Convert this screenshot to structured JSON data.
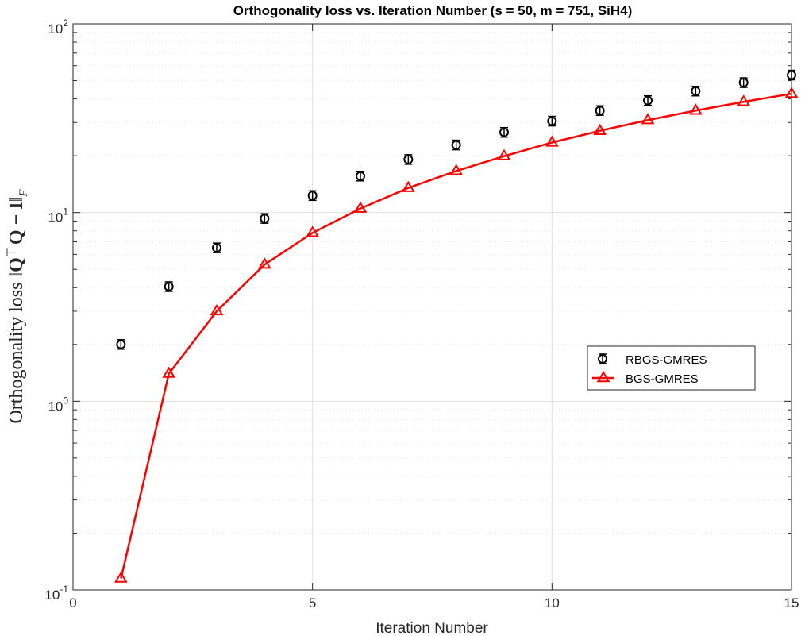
{
  "chart_data": {
    "type": "line",
    "title": "Orthogonality loss vs. Iteration Number (s = 50, m = 751, SiH4)",
    "xlabel": "Iteration Number",
    "ylabel": "Orthogonality loss ||Q⊤Q − I||F",
    "ylabel_parts": {
      "prefix": "Orthogonality loss ",
      "norm_open": "‖",
      "q1": "Q",
      "sup": "⊤",
      "q2": "Q − I",
      "norm_close": "‖",
      "sub": "F"
    },
    "xlim": [
      0,
      15
    ],
    "ylim": [
      0.1,
      100
    ],
    "yscale": "log",
    "grid": true,
    "minor_grid": true,
    "legend_position": "center-right",
    "x_ticks": [
      {
        "value": 0,
        "label": "0"
      },
      {
        "value": 5,
        "label": "5"
      },
      {
        "value": 10,
        "label": "10"
      },
      {
        "value": 15,
        "label": "15"
      }
    ],
    "y_ticks": [
      {
        "value": 0.1,
        "base": "10",
        "exp": "-1"
      },
      {
        "value": 1,
        "base": "10",
        "exp": "0"
      },
      {
        "value": 10,
        "base": "10",
        "exp": "1"
      },
      {
        "value": 100,
        "base": "10",
        "exp": "2"
      }
    ],
    "x": [
      1,
      2,
      3,
      4,
      5,
      6,
      7,
      8,
      9,
      10,
      11,
      12,
      13,
      14,
      15
    ],
    "series": [
      {
        "name": "RBGS-GMRES",
        "color": "#000000",
        "marker": "circle-errorbar",
        "line": false,
        "values": [
          2.0,
          4.05,
          6.5,
          9.3,
          12.3,
          15.6,
          19.1,
          22.8,
          26.6,
          30.5,
          34.7,
          39.2,
          44.0,
          48.8,
          53.5
        ]
      },
      {
        "name": "BGS-GMRES",
        "color": "#ff0000",
        "marker": "triangle",
        "line": true,
        "values": [
          0.115,
          1.4,
          3.0,
          5.3,
          7.8,
          10.5,
          13.5,
          16.6,
          19.9,
          23.5,
          27.1,
          30.9,
          34.7,
          38.6,
          42.6
        ]
      }
    ]
  }
}
